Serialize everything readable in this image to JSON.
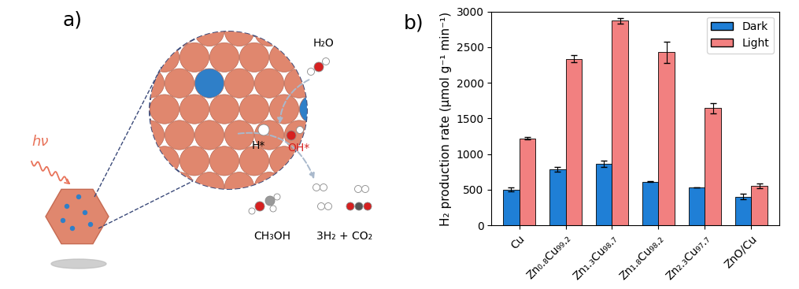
{
  "diagram": {
    "label": "a)",
    "light": "hν",
    "molecules": {
      "water": "H₂O",
      "hydrogen": "H*",
      "hydroxyl": "OH*",
      "methanol": "CH₃OH",
      "products": "3H₂ + CO₂"
    }
  },
  "chart_data": {
    "type": "bar",
    "title": "b)",
    "y_label": "H₂ production rate (μmol g⁻¹ min⁻¹)",
    "categories": [
      "Cu",
      "Zn₀.₈Cu₉₉.₂",
      "Zn₁.₃Cu₉₈.₇",
      "Zn₁.₈Cu₉₈.₂",
      "Zn₂.₃Cu₉₇.₇",
      "ZnO/Cu"
    ],
    "series": [
      {
        "name": "Dark",
        "color": "#1f7fd6",
        "values": [
          505,
          785,
          865,
          615,
          530,
          405
        ],
        "errors": [
          30,
          35,
          40,
          10,
          0,
          35
        ]
      },
      {
        "name": "Light",
        "color": "#f28080",
        "values": [
          1220,
          2335,
          2870,
          2430,
          1645,
          555
        ],
        "errors": [
          15,
          50,
          40,
          150,
          75,
          30
        ]
      }
    ],
    "ylim": [
      0,
      3000
    ],
    "yticks": [
      0,
      500,
      1000,
      1500,
      2000,
      2500,
      3000
    ],
    "legend": "upper right",
    "grid": false
  }
}
